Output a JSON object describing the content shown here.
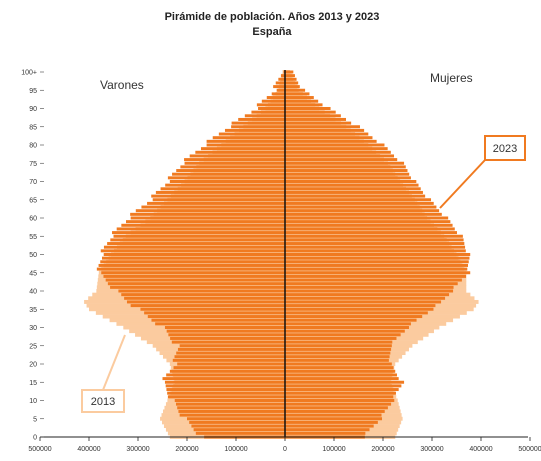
{
  "chart_data": {
    "type": "bar",
    "title": "Pirámide de población. Años 2013 y 2023",
    "subtitle": "España",
    "left_label": "Varones",
    "right_label": "Mujeres",
    "xlim": [
      -500000,
      500000
    ],
    "x_ticks": [
      -500000,
      -400000,
      -300000,
      -200000,
      -100000,
      0,
      100000,
      200000,
      300000,
      400000,
      500000
    ],
    "x_tick_labels": [
      "500000",
      "400000",
      "300000",
      "200000",
      "100000",
      "0",
      "100000",
      "200000",
      "300000",
      "400000",
      "500000"
    ],
    "y_ticks": [
      0,
      5,
      10,
      15,
      20,
      25,
      30,
      35,
      40,
      45,
      50,
      55,
      60,
      65,
      70,
      75,
      80,
      85,
      90,
      95,
      100
    ],
    "y_tick_labels": [
      "0",
      "5",
      "10",
      "15",
      "20",
      "25",
      "30",
      "35",
      "40",
      "45",
      "50",
      "55",
      "60",
      "65",
      "70",
      "75",
      "80",
      "85",
      "90",
      "95",
      "100+"
    ],
    "age_points": [
      0,
      5,
      10,
      15,
      20,
      25,
      30,
      35,
      37,
      40,
      45,
      50,
      55,
      60,
      65,
      70,
      75,
      80,
      85,
      90,
      95,
      100
    ],
    "series": [
      {
        "name": "2013",
        "color": "#fbcb9f",
        "men": [
          235000,
          255000,
          240000,
          225000,
          235000,
          270000,
          330000,
          400000,
          410000,
          385000,
          380000,
          355000,
          325000,
          275000,
          240000,
          205000,
          175000,
          130000,
          85000,
          40000,
          14000,
          5000
        ],
        "women": [
          225000,
          240000,
          230000,
          215000,
          225000,
          260000,
          315000,
          385000,
          395000,
          370000,
          370000,
          350000,
          325000,
          290000,
          265000,
          235000,
          210000,
          170000,
          125000,
          70000,
          28000,
          10000
        ]
      },
      {
        "name": "2023",
        "color": "#f07a20",
        "men": [
          170000,
          205000,
          230000,
          250000,
          225000,
          220000,
          250000,
          300000,
          320000,
          345000,
          380000,
          375000,
          355000,
          320000,
          275000,
          240000,
          210000,
          165000,
          115000,
          60000,
          22000,
          8000
        ],
        "women": [
          160000,
          195000,
          220000,
          240000,
          215000,
          215000,
          250000,
          300000,
          320000,
          340000,
          375000,
          375000,
          360000,
          330000,
          295000,
          265000,
          240000,
          200000,
          150000,
          90000,
          38000,
          14000
        ]
      }
    ]
  }
}
